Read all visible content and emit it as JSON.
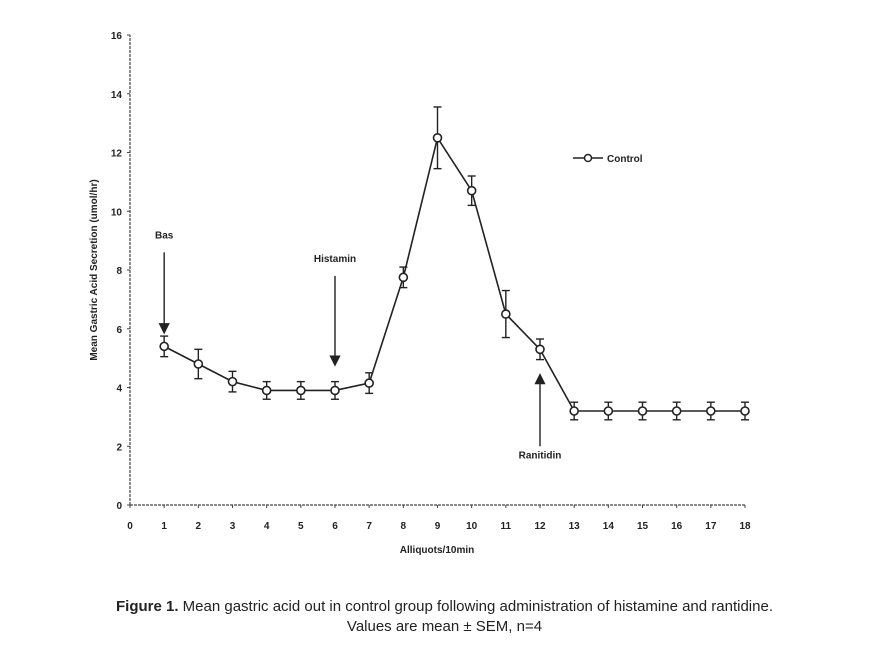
{
  "chart_data": {
    "type": "line",
    "xlabel": "Alliquots/10min",
    "ylabel": "Mean Gastric Acid Secretion (umol/hr)",
    "xlim": [
      0,
      18
    ],
    "ylim": [
      0,
      16
    ],
    "x_ticks": [
      "0",
      "1",
      "2",
      "3",
      "4",
      "5",
      "6",
      "7",
      "8",
      "9",
      "10",
      "11",
      "12",
      "13",
      "14",
      "15",
      "16",
      "17",
      "18"
    ],
    "y_ticks": [
      "0",
      "2",
      "4",
      "6",
      "8",
      "10",
      "12",
      "14",
      "16"
    ],
    "legend": {
      "position": "top-right",
      "entries": [
        "Control"
      ]
    },
    "series": [
      {
        "name": "Control",
        "x": [
          1,
          2,
          3,
          4,
          5,
          6,
          7,
          8,
          9,
          10,
          11,
          12,
          13,
          14,
          15,
          16,
          17,
          18
        ],
        "y": [
          5.4,
          4.8,
          4.2,
          3.9,
          3.9,
          3.9,
          4.15,
          7.75,
          12.5,
          10.7,
          6.5,
          5.3,
          3.2,
          3.2,
          3.2,
          3.2,
          3.2,
          3.2
        ],
        "sem": [
          0.35,
          0.5,
          0.35,
          0.3,
          0.3,
          0.3,
          0.35,
          0.35,
          1.05,
          0.5,
          0.8,
          0.35,
          0.3,
          0.3,
          0.3,
          0.3,
          0.3,
          0.3
        ]
      }
    ],
    "annotations": [
      {
        "text": "Bas",
        "x": 1,
        "arrow": "down",
        "from_y": 8.6,
        "to_y": 6.0
      },
      {
        "text": "Histamin",
        "x": 6,
        "arrow": "down",
        "from_y": 7.8,
        "to_y": 4.9
      },
      {
        "text": "Ranitidin",
        "x": 12,
        "arrow": "up",
        "from_y": 2.0,
        "to_y": 4.3
      }
    ]
  },
  "caption": {
    "label": "Figure 1.",
    "line1": " Mean gastric acid out in control group following administration of histamine and rantidine.",
    "line2": "Values are mean ± SEM, n=4"
  }
}
